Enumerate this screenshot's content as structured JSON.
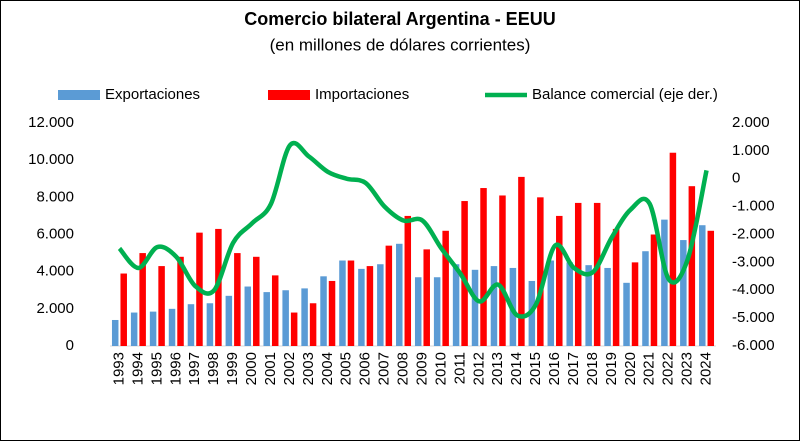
{
  "chart_data": {
    "type": "bar-line",
    "title": "Comercio bilateral Argentina - EEUU",
    "subtitle": "(en millones de dólares corrientes)",
    "categories": [
      "1993",
      "1994",
      "1995",
      "1996",
      "1997",
      "1998",
      "1999",
      "2000",
      "2001",
      "2002",
      "2003",
      "2004",
      "2005",
      "2006",
      "2007",
      "2008",
      "2009",
      "2010",
      "2011",
      "2012",
      "2013",
      "2014",
      "2015",
      "2016",
      "2017",
      "2018",
      "2019",
      "2020",
      "2021",
      "2022",
      "2023",
      "2024"
    ],
    "series": [
      {
        "name": "Exportaciones",
        "color": "#5b9bd5",
        "kind": "bar",
        "values": [
          1400,
          1800,
          1850,
          2000,
          2250,
          2300,
          2700,
          3200,
          2900,
          3000,
          3100,
          3750,
          4600,
          4150,
          4400,
          5500,
          3700,
          3700,
          4400,
          4100,
          4300,
          4200,
          3500,
          4600,
          4500,
          4350,
          4200,
          3400,
          5100,
          6800,
          5700,
          6500
        ]
      },
      {
        "name": "Importaciones",
        "color": "#ff0000",
        "kind": "bar",
        "values": [
          3900,
          5000,
          4300,
          4800,
          6100,
          6300,
          5000,
          4800,
          3800,
          1800,
          2300,
          3500,
          4600,
          4300,
          5400,
          7000,
          5200,
          6200,
          7800,
          8500,
          8100,
          9100,
          8000,
          7000,
          7700,
          7700,
          6300,
          4500,
          6000,
          10400,
          8600,
          6200
        ]
      },
      {
        "name": "Balance comercial (eje der.)",
        "color": "#00b050",
        "kind": "line",
        "axis": "y2",
        "values": [
          -2500,
          -3200,
          -2450,
          -2800,
          -3850,
          -4000,
          -2300,
          -1600,
          -900,
          1200,
          800,
          250,
          0,
          -150,
          -1000,
          -1500,
          -1500,
          -2500,
          -3400,
          -4400,
          -3800,
          -4900,
          -4500,
          -2400,
          -3200,
          -3350,
          -2100,
          -1100,
          -900,
          -3600,
          -2900,
          300
        ]
      }
    ],
    "ylim": [
      0,
      12000
    ],
    "yticks": [
      0,
      {
        "value": 2000,
        "label": "2.000"
      },
      {
        "value": 4000,
        "label": "4.000"
      },
      {
        "value": 6000,
        "label": "6.000"
      },
      {
        "value": 8000,
        "label": "8.000"
      },
      {
        "value": 10000,
        "label": "10.000"
      },
      {
        "value": 12000,
        "label": "12.000"
      }
    ],
    "y2lim": [
      -6000,
      2000
    ],
    "y2ticks": [
      {
        "value": -6000,
        "label": "-6.000"
      },
      {
        "value": -5000,
        "label": "-5.000"
      },
      {
        "value": -4000,
        "label": "-4.000"
      },
      {
        "value": -3000,
        "label": "-3.000"
      },
      {
        "value": -2000,
        "label": "-2.000"
      },
      {
        "value": -1000,
        "label": "-1.000"
      },
      0,
      {
        "value": 1000,
        "label": "1.000"
      },
      {
        "value": 2000,
        "label": "2.000"
      }
    ],
    "grid": false
  }
}
